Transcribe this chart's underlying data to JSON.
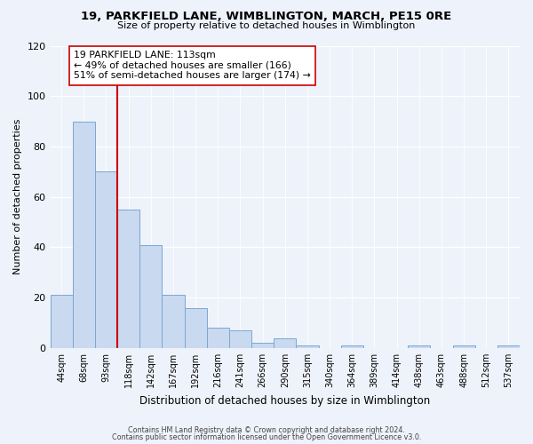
{
  "title": "19, PARKFIELD LANE, WIMBLINGTON, MARCH, PE15 0RE",
  "subtitle": "Size of property relative to detached houses in Wimblington",
  "xlabel": "Distribution of detached houses by size in Wimblington",
  "ylabel": "Number of detached properties",
  "bar_labels": [
    "44sqm",
    "68sqm",
    "93sqm",
    "118sqm",
    "142sqm",
    "167sqm",
    "192sqm",
    "216sqm",
    "241sqm",
    "266sqm",
    "290sqm",
    "315sqm",
    "340sqm",
    "364sqm",
    "389sqm",
    "414sqm",
    "438sqm",
    "463sqm",
    "488sqm",
    "512sqm",
    "537sqm"
  ],
  "bar_heights": [
    21,
    90,
    70,
    55,
    41,
    21,
    16,
    8,
    7,
    2,
    4,
    1,
    0,
    1,
    0,
    0,
    1,
    0,
    1,
    0,
    1
  ],
  "bar_color": "#c8d9f0",
  "bar_edge_color": "#7aa8d4",
  "property_line_color": "#cc0000",
  "annotation_text": "19 PARKFIELD LANE: 113sqm\n← 49% of detached houses are smaller (166)\n51% of semi-detached houses are larger (174) →",
  "annotation_box_color": "#ffffff",
  "annotation_box_edge": "#cc0000",
  "ylim": [
    0,
    120
  ],
  "yticks": [
    0,
    20,
    40,
    60,
    80,
    100,
    120
  ],
  "footer1": "Contains HM Land Registry data © Crown copyright and database right 2024.",
  "footer2": "Contains public sector information licensed under the Open Government Licence v3.0.",
  "bg_color": "#eef2fa"
}
